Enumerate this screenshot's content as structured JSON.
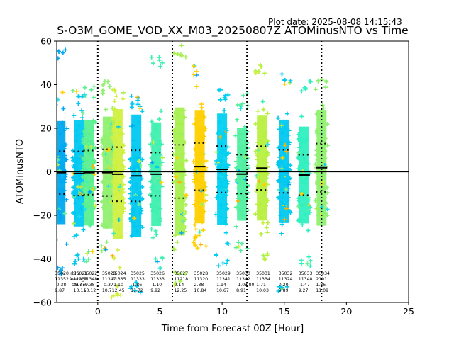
{
  "plot_date": "Plot date: 2025-08-08 14:15:43",
  "chart_data": {
    "type": "scatter",
    "title": "S-O3M_GOME_VOD_XX_M03_20250807Z ATOMinusNTO vs Time",
    "xlabel": "Time from Forecast 00Z [Hour]",
    "ylabel": "ATOMinusNTO",
    "xlim": [
      -3.3,
      25
    ],
    "ylim": [
      -60,
      60
    ],
    "xticks": [
      0,
      5,
      10,
      15,
      20,
      25
    ],
    "yticks": [
      -60,
      -40,
      -20,
      0,
      20,
      40,
      60
    ],
    "grid": false,
    "zero_line": 0,
    "dotted_vlines": [
      0,
      6,
      12,
      18
    ],
    "orbit_columns": [
      {
        "x": -3.0,
        "color": "#00a8f0",
        "mean": -0.38,
        "std": 9.87,
        "lo": -48,
        "hi": 57,
        "stats": {
          "orbit": "35020",
          "count": "11352",
          "mean": "-0.38",
          "std": "9.87"
        }
      },
      {
        "x": -1.5,
        "color": "#00c8f0",
        "mean": -0.77,
        "std": 10.15,
        "lo": -44,
        "hi": 38,
        "stats": {
          "orbit": "35021",
          "count": "11335",
          "mean": "-0.77",
          "std": "10.15"
        }
      },
      {
        "x": -0.7,
        "color": "#5af090",
        "mean": -0.38,
        "std": 10.12,
        "lo": -42,
        "hi": 40,
        "stats": {
          "orbit": "35022",
          "count": "11348",
          "mean": "-0.38",
          "std": "10.12"
        }
      },
      {
        "x": 0.8,
        "color": "#90f070",
        "mean": -0.37,
        "std": 10.71,
        "lo": -40,
        "hi": 42,
        "stats": {
          "orbit": "35023",
          "count": "11347",
          "mean": "-0.37",
          "std": "10.71"
        }
      },
      {
        "x": 1.6,
        "color": "#d0f040",
        "mean": -1.1,
        "std": 12.45,
        "lo": -58,
        "hi": 39,
        "stats": {
          "orbit": "35024",
          "count": "11335",
          "mean": "-1.10",
          "std": "12.45"
        }
      },
      {
        "x": 3.1,
        "color": "#00c8f0",
        "mean": -1.86,
        "std": 11.72,
        "lo": -56,
        "hi": 35,
        "stats": {
          "orbit": "35025",
          "count": "11333",
          "mean": "-1.86",
          "std": "11.72"
        }
      },
      {
        "x": 4.7,
        "color": "#40f0b0",
        "mean": -1.1,
        "std": 9.92,
        "lo": -45,
        "hi": 53,
        "stats": {
          "orbit": "35026",
          "count": "11333",
          "mean": "-1.10",
          "std": "9.92"
        }
      },
      {
        "x": 6.6,
        "color": "#a8f050",
        "mean": 0.14,
        "std": 12.25,
        "lo": -52,
        "hi": 58,
        "stats": {
          "orbit": "35027",
          "count": "11218",
          "mean": "0.14",
          "std": "12.25"
        }
      },
      {
        "x": 8.2,
        "color": "#ffd000",
        "mean": 2.38,
        "std": 10.84,
        "lo": -35,
        "hi": 50,
        "stats": {
          "orbit": "35028",
          "count": "11320",
          "mean": "2.38",
          "std": "10.84"
        }
      },
      {
        "x": 10.0,
        "color": "#00d0f0",
        "mean": 1.14,
        "std": 10.67,
        "lo": -44,
        "hi": 38,
        "stats": {
          "orbit": "35029",
          "count": "11341",
          "mean": "1.14",
          "std": "10.67"
        }
      },
      {
        "x": 11.6,
        "color": "#50f0a0",
        "mean": -1.07,
        "std": 8.91,
        "lo": -38,
        "hi": 36,
        "stats": {
          "orbit": "35030",
          "count": "11342",
          "mean": "-1.07",
          "std": "8.91"
        }
      },
      {
        "x": 13.2,
        "color": "#b8f040",
        "mean": 1.71,
        "std": 10.03,
        "lo": -42,
        "hi": 51,
        "stats": {
          "orbit": "35031",
          "count": "11334",
          "mean": "1.71",
          "std": "10.03"
        }
      },
      {
        "x": 15.0,
        "color": "#00c8f0",
        "mean": 0.2,
        "std": 9.89,
        "lo": -56,
        "hi": 45,
        "stats": {
          "orbit": "35032",
          "count": "11324",
          "mean": "0.20",
          "std": "9.89"
        }
      },
      {
        "x": 16.6,
        "color": "#30f0c0",
        "mean": -1.47,
        "std": 9.27,
        "lo": -45,
        "hi": 42,
        "stats": {
          "orbit": "35033",
          "count": "11348",
          "mean": "-1.47",
          "std": "9.27"
        }
      },
      {
        "x": 18.0,
        "color": "#90f070",
        "mean": 1.86,
        "std": 11.09,
        "lo": -20,
        "hi": 43,
        "stats": {
          "orbit": "35034",
          "count": "2191",
          "mean": "1.86",
          "std": "11.09"
        }
      }
    ],
    "overlap_labels": [
      "rbits",
      "Average",
      "std dev",
      "8.80"
    ]
  },
  "colors": {
    "axis": "#000000",
    "mean_marker": "#000000",
    "orange": "#ffb000",
    "cyan": "#00c8f0"
  }
}
